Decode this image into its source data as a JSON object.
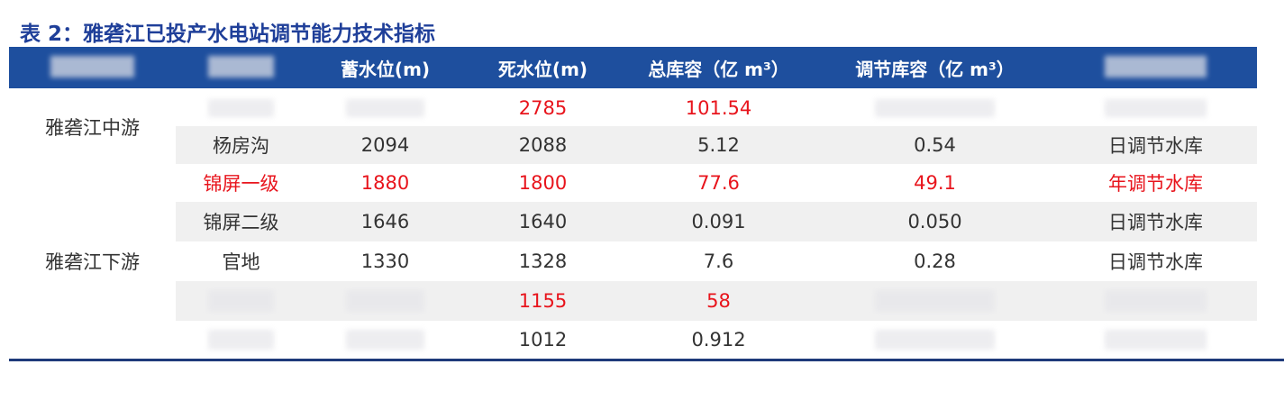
{
  "title": "表 2：雅砻江已投产水电站调节能力技术指标",
  "table": {
    "header": [
      null,
      null,
      "蓄水位(m)",
      "死水位(m)",
      "总库容（亿 m³）",
      "调节库容（亿 m³）",
      null
    ],
    "groups": [
      {
        "label": "雅砻江中游",
        "rows": [
          {
            "color": "#e8141c",
            "cells": [
              null,
              null,
              "2785",
              "101.54",
              null,
              null
            ]
          },
          {
            "color": "#333333",
            "cells": [
              "杨房沟",
              "2094",
              "2088",
              "5.12",
              "0.54",
              "日调节水库"
            ]
          }
        ]
      },
      {
        "label": "雅砻江下游",
        "rows": [
          {
            "color": "#e8141c",
            "cells": [
              "锦屏一级",
              "1880",
              "1800",
              "77.6",
              "49.1",
              "年调节水库"
            ]
          },
          {
            "color": "#333333",
            "cells": [
              "锦屏二级",
              "1646",
              "1640",
              "0.091",
              "0.050",
              "日调节水库"
            ]
          },
          {
            "color": "#333333",
            "cells": [
              "官地",
              "1330",
              "1328",
              "7.6",
              "0.28",
              "日调节水库"
            ]
          },
          {
            "color": "#e8141c",
            "cells": [
              null,
              null,
              "1155",
              "58",
              null,
              null
            ]
          },
          {
            "color": "#333333",
            "cells": [
              null,
              null,
              "1012",
              "0.912",
              null,
              null
            ]
          }
        ]
      }
    ]
  }
}
